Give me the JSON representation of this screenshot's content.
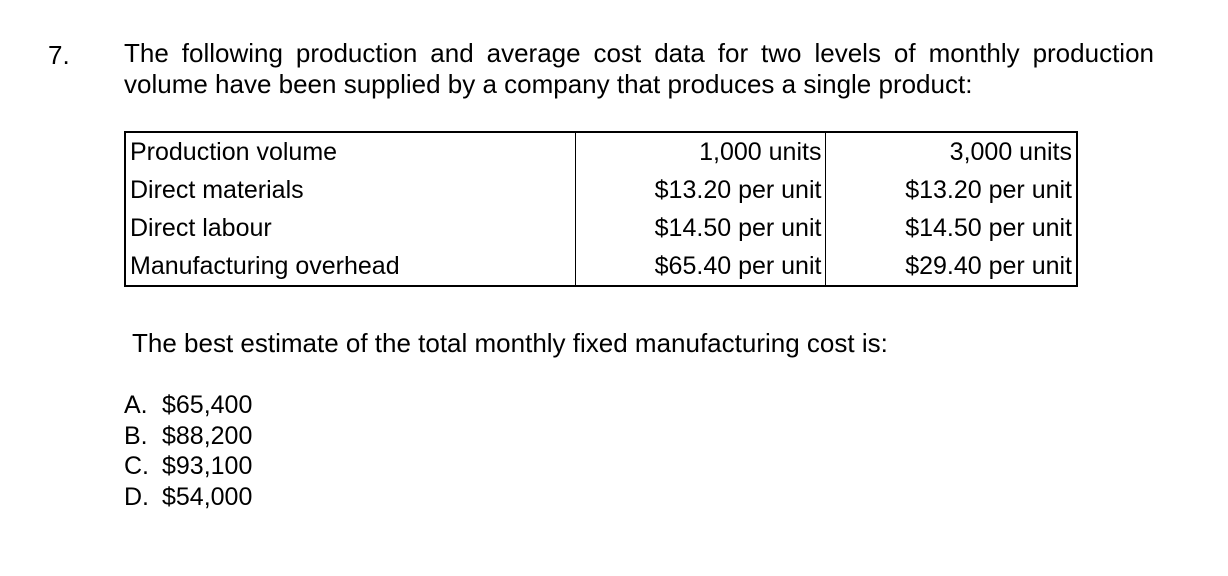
{
  "question": {
    "number": "7.",
    "stem_line1": "The following production and average cost data for two levels of monthly production",
    "stem_line2": "volume have been supplied by a company that produces a single product:",
    "table": {
      "rows": [
        {
          "label": "Production volume",
          "col1": "1,000 units",
          "col2": "3,000 units"
        },
        {
          "label": "Direct materials",
          "col1": "$13.20 per unit",
          "col2": "$13.20 per unit"
        },
        {
          "label": "Direct labour",
          "col1": "$14.50 per unit",
          "col2": "$14.50 per unit"
        },
        {
          "label": "Manufacturing overhead",
          "col1": "$65.40 per unit",
          "col2": "$29.40 per unit"
        }
      ]
    },
    "prompt": "The best estimate of the total monthly fixed manufacturing cost is:",
    "options": [
      {
        "letter": "A.",
        "text": "$65,400"
      },
      {
        "letter": "B.",
        "text": "$88,200"
      },
      {
        "letter": "C.",
        "text": "$93,100"
      },
      {
        "letter": "D.",
        "text": "$54,000"
      }
    ]
  }
}
